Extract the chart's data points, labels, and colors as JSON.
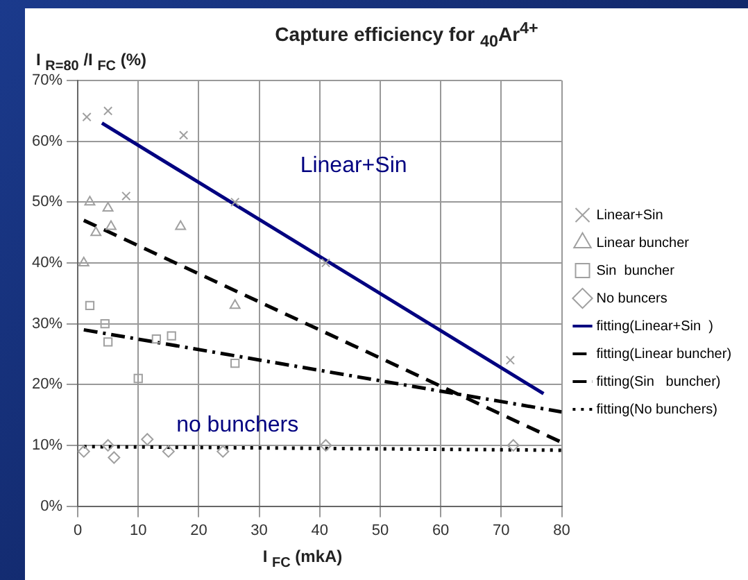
{
  "chart_data": {
    "type": "scatter",
    "title": "Capture efficiency for $_{40}$Ar$^{4+}$",
    "ylabel": "I $_{R=80}$ /I $_{FC}$ (%)",
    "xlabel": "I $_{FC}$ (mkA)",
    "xlim": [
      0,
      80
    ],
    "xticks": [
      0,
      10,
      20,
      30,
      40,
      50,
      60,
      70,
      80
    ],
    "ylim": [
      0,
      70
    ],
    "yticks": [
      {
        "value": 0,
        "label": "0%"
      },
      {
        "value": 10,
        "label": "10%"
      },
      {
        "value": 20,
        "label": "20%"
      },
      {
        "value": 30,
        "label": "30%"
      },
      {
        "value": 40,
        "label": "40%"
      },
      {
        "value": 50,
        "label": "50%"
      },
      {
        "value": 60,
        "label": "60%"
      },
      {
        "value": 70,
        "label": "70%"
      }
    ],
    "grid": true,
    "legend": "right",
    "annotations": [
      "Linear+Sin",
      "no bunchers"
    ],
    "series": [
      {
        "name": "Linear+Sin",
        "marker": "cross",
        "color": "#a0a0a0",
        "x": [
          1.5,
          5,
          8,
          17.5,
          26,
          41,
          71.5
        ],
        "values": [
          64,
          65,
          51,
          61,
          50,
          40,
          24
        ]
      },
      {
        "name": "Linear buncher",
        "marker": "triangle",
        "color": "#a0a0a0",
        "x": [
          1,
          2,
          3,
          5,
          5.5,
          17,
          26
        ],
        "values": [
          40,
          50,
          45,
          49,
          46,
          46,
          33
        ]
      },
      {
        "name": "Sin  buncher",
        "marker": "square",
        "color": "#a0a0a0",
        "x": [
          2,
          4.5,
          5,
          10,
          13,
          15.5,
          26
        ],
        "values": [
          33,
          30,
          27,
          21,
          27.5,
          28,
          23.5
        ]
      },
      {
        "name": "No buncers",
        "marker": "diamond",
        "color": "#a0a0a0",
        "x": [
          1,
          5,
          6,
          11.5,
          15,
          24,
          41,
          72
        ],
        "values": [
          9,
          10,
          8,
          11,
          9,
          9,
          10,
          10
        ]
      },
      {
        "name": "fitting(Linear+Sin  )",
        "type": "line",
        "marker": "none",
        "line_style": "solid",
        "color": "#000080",
        "x": [
          4,
          77
        ],
        "values": [
          63,
          18.5
        ]
      },
      {
        "name": "fitting(Linear buncher)",
        "type": "line",
        "marker": "none",
        "line_style": "dashed",
        "color": "#000000",
        "x": [
          1,
          80
        ],
        "values": [
          47,
          10.5
        ]
      },
      {
        "name": "fitting(Sin   buncher)",
        "type": "line",
        "marker": "none",
        "line_style": "dashdot",
        "color": "#000000",
        "x": [
          1,
          80
        ],
        "values": [
          29,
          15.5
        ]
      },
      {
        "name": "fitting(No bunchers)",
        "type": "line",
        "marker": "none",
        "line_style": "dotted",
        "color": "#000000",
        "x": [
          1,
          80
        ],
        "values": [
          9.8,
          9.2
        ]
      }
    ]
  }
}
